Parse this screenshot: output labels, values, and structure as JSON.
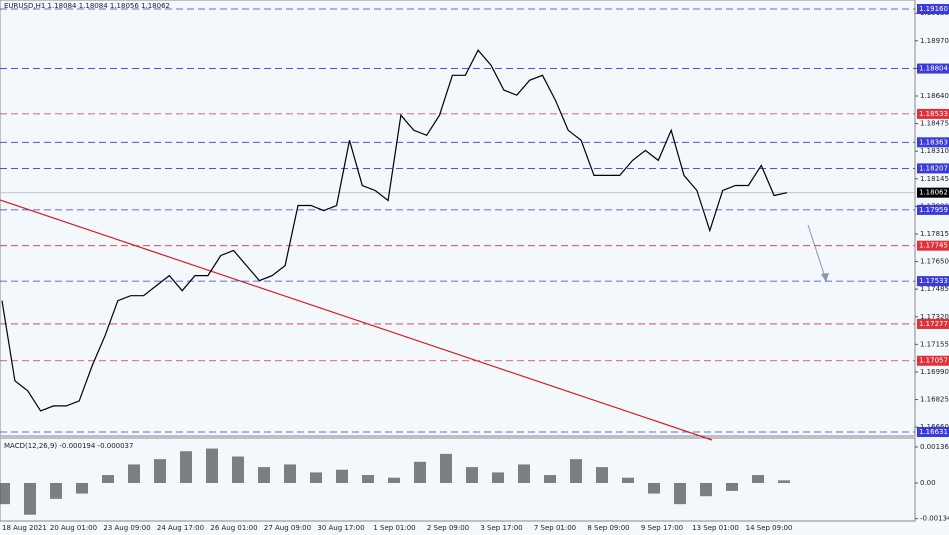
{
  "chart_data": {
    "type": "line",
    "title": "EURUSD,H1  1.18084 1.18084 1.18056 1.18062",
    "color": "#000000",
    "values": [
      1.17416,
      1.16937,
      1.16877,
      1.16757,
      1.16787,
      1.16787,
      1.16817,
      1.17026,
      1.17206,
      1.17416,
      1.17446,
      1.17446,
      1.17506,
      1.17566,
      1.17476,
      1.17566,
      1.17566,
      1.17686,
      1.17716,
      1.17626,
      1.17536,
      1.17566,
      1.17626,
      1.17985,
      1.17985,
      1.17955,
      1.17985,
      1.18375,
      1.18105,
      1.18075,
      1.18015,
      1.18525,
      1.18435,
      1.18405,
      1.18525,
      1.18764,
      1.18764,
      1.18914,
      1.18824,
      1.18675,
      1.18645,
      1.18734,
      1.18764,
      1.18615,
      1.18435,
      1.18375,
      1.18165,
      1.18165,
      1.18165,
      1.18255,
      1.18315,
      1.18255,
      1.18435,
      1.18165,
      1.18075,
      1.17836,
      1.18075,
      1.18105,
      1.18105,
      1.18225,
      1.18045,
      1.18062
    ],
    "x_labels": [
      "18 Aug 2021",
      "20 Aug 01:00",
      "23 Aug 09:00",
      "24 Aug 17:00",
      "26 Aug 01:00",
      "27 Aug 09:00",
      "30 Aug 17:00",
      "1 Sep 01:00",
      "2 Sep 09:00",
      "3 Sep 17:00",
      "7 Sep 01:00",
      "8 Sep 09:00",
      "9 Sep 17:00",
      "13 Sep 01:00",
      "14 Sep 09:00"
    ],
    "ylim": [
      1.16607,
      1.19214
    ],
    "yticks": [
      {
        "value": 1.19135,
        "label": "1.19135"
      },
      {
        "value": 1.1897,
        "label": "1.18970"
      },
      {
        "value": 1.18805,
        "label": "1.18805"
      },
      {
        "value": 1.1864,
        "label": "1.18640"
      },
      {
        "value": 1.18475,
        "label": "1.18475"
      },
      {
        "value": 1.1831,
        "label": "1.18310"
      },
      {
        "value": 1.18145,
        "label": "1.18145"
      },
      {
        "value": 1.1798,
        "label": "1.17980"
      },
      {
        "value": 1.17815,
        "label": "1.17815"
      },
      {
        "value": 1.1765,
        "label": "1.17650"
      },
      {
        "value": 1.17485,
        "label": "1.17485"
      },
      {
        "value": 1.1732,
        "label": "1.17320"
      },
      {
        "value": 1.17155,
        "label": "1.17155"
      },
      {
        "value": 1.1699,
        "label": "1.16990"
      },
      {
        "value": 1.16825,
        "label": "1.16825"
      },
      {
        "value": 1.1666,
        "label": "1.16660"
      }
    ],
    "levels": [
      {
        "value": 1.1916,
        "label": "1.19160",
        "color": "#3a3ad8"
      },
      {
        "value": 1.18804,
        "label": "1.18804",
        "color": "#3a3ad8"
      },
      {
        "value": 1.18533,
        "label": "1.18533",
        "color": "#e0303a"
      },
      {
        "value": 1.18363,
        "label": "1.18363",
        "color": "#3a3ad8"
      },
      {
        "value": 1.18207,
        "label": "1.18207",
        "color": "#3a3ad8"
      },
      {
        "value": 1.18062,
        "label": "1.18062",
        "color": "#000000"
      },
      {
        "value": 1.17959,
        "label": "1.17959",
        "color": "#3a3ad8"
      },
      {
        "value": 1.17745,
        "label": "1.17745",
        "color": "#e0303a"
      },
      {
        "value": 1.17533,
        "label": "1.17533",
        "color": "#3a3ad8"
      },
      {
        "value": 1.17277,
        "label": "1.17277",
        "color": "#e0303a"
      },
      {
        "value": 1.17057,
        "label": "1.17057",
        "color": "#e0303a"
      },
      {
        "value": 1.16631,
        "label": "1.16631",
        "color": "#3a3ad8"
      }
    ],
    "macd": {
      "title": "MACD(12,26,9) -0.000194 -0.000037",
      "color": "#555555",
      "ylim": [
        -0.001437,
        0.0017
      ],
      "yticks": [
        0.001361,
        {
          "value": 0,
          "label": "0.00"
        },
        -0.001349
      ],
      "values": [
        -0.0008,
        -0.0012,
        -0.0006,
        -0.0004,
        0.0003,
        0.0007,
        0.0009,
        0.0012,
        0.0013,
        0.001,
        0.0006,
        0.0007,
        0.0004,
        0.0005,
        0.0003,
        0.0002,
        0.0008,
        0.0011,
        0.0006,
        0.0004,
        0.0007,
        0.0003,
        0.0009,
        0.0006,
        0.0002,
        -0.0004,
        -0.0008,
        -0.0005,
        -0.0003,
        0.0003,
        0.0001
      ]
    }
  }
}
